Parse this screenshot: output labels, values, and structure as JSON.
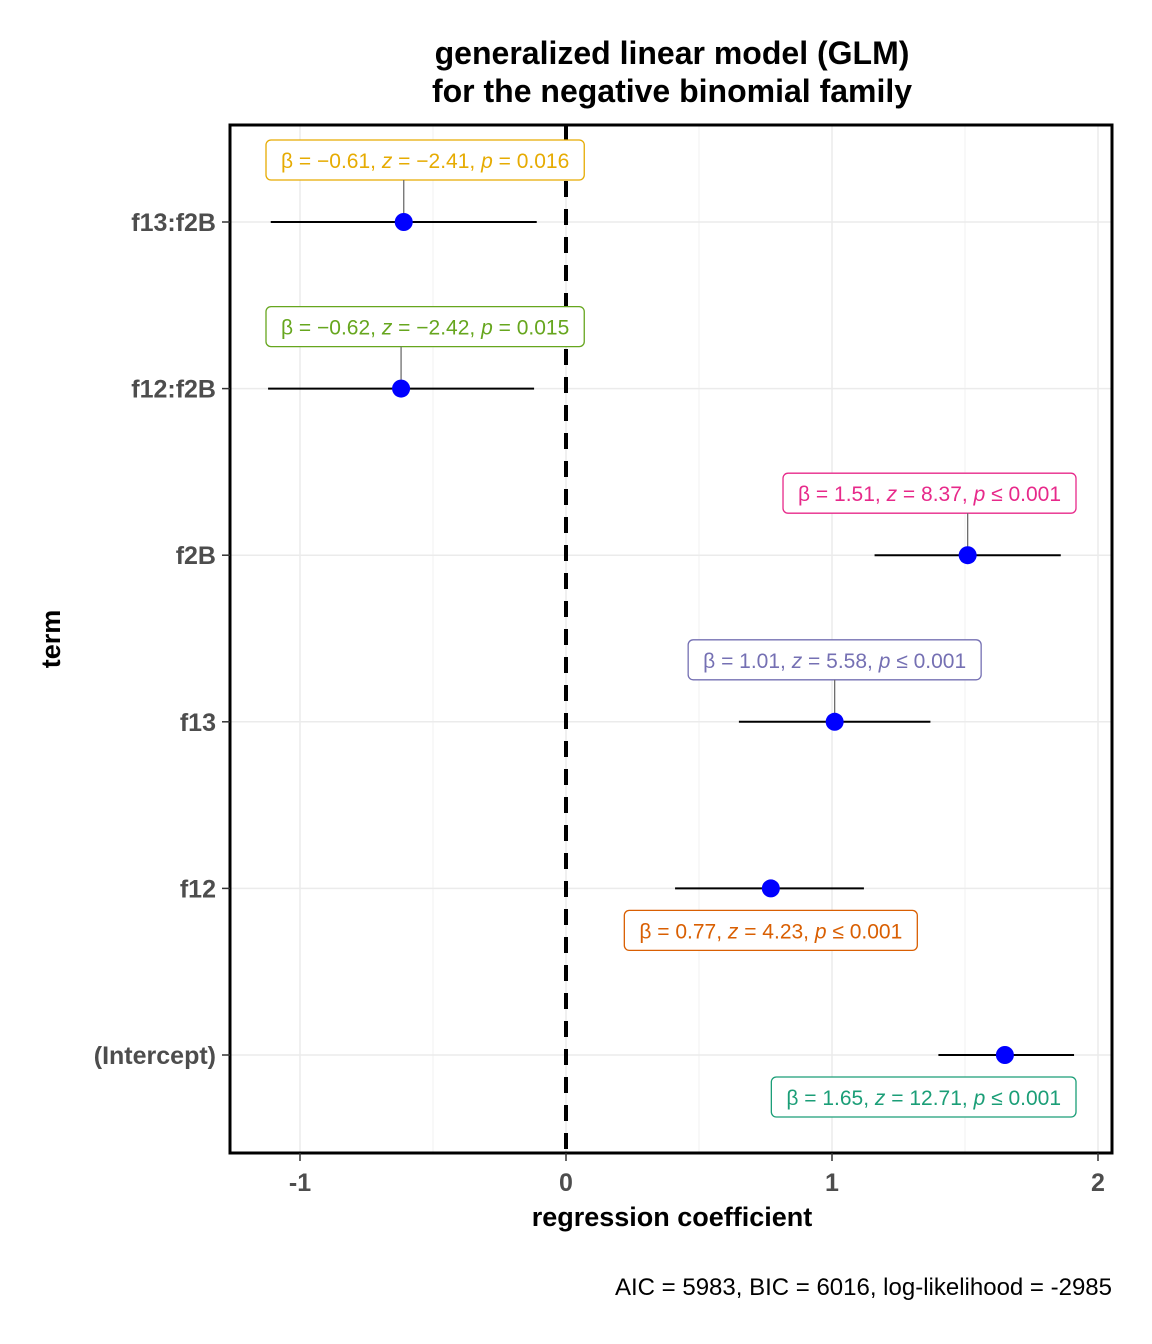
{
  "chart_data": {
    "type": "scatter",
    "title": [
      "generalized linear model (GLM)",
      "for the negative binomial family"
    ],
    "xlabel": "regression coefficient",
    "ylabel": "term",
    "caption": "AIC = 5983, BIC = 6016, log-likelihood = -2985",
    "xlim": [
      -1.25,
      2.06
    ],
    "xticks": [
      -1,
      0,
      1,
      2
    ],
    "xtick_labels": [
      "-1",
      "0",
      "1",
      "2"
    ],
    "grid": true,
    "reference_line_x": 0,
    "point_color": "#0000ff",
    "terms": [
      {
        "term": "(Intercept)",
        "estimate": 1.65,
        "low": 1.4,
        "high": 1.91,
        "label_color": "#1b9e77",
        "label_side": "below",
        "label": [
          "β = 1.65, ",
          "z",
          " = 12.71, ",
          "p",
          " ≤ 0.001"
        ]
      },
      {
        "term": "f12",
        "estimate": 0.77,
        "low": 0.41,
        "high": 1.12,
        "label_color": "#d95f02",
        "label_side": "below",
        "label": [
          "β = 0.77, ",
          "z",
          " = 4.23, ",
          "p",
          " ≤ 0.001"
        ]
      },
      {
        "term": "f13",
        "estimate": 1.01,
        "low": 0.65,
        "high": 1.37,
        "label_color": "#7570b3",
        "label_side": "above",
        "label": [
          "β = 1.01, ",
          "z",
          " = 5.58, ",
          "p",
          " ≤ 0.001"
        ]
      },
      {
        "term": "f2B",
        "estimate": 1.51,
        "low": 1.16,
        "high": 1.86,
        "label_color": "#e7298a",
        "label_side": "above",
        "label": [
          "β = 1.51, ",
          "z",
          " = 8.37, ",
          "p",
          " ≤ 0.001"
        ]
      },
      {
        "term": "f12:f2B",
        "estimate": -0.62,
        "low": -1.12,
        "high": -0.12,
        "label_color": "#66a61e",
        "label_side": "above",
        "label": [
          "β = −0.62, ",
          "z",
          " = −2.42, ",
          "p",
          " = 0.015"
        ]
      },
      {
        "term": "f13:f2B",
        "estimate": -0.61,
        "low": -1.11,
        "high": -0.11,
        "label_color": "#e6ab02",
        "label_side": "above",
        "label": [
          "β = −0.61, ",
          "z",
          " = −2.41, ",
          "p",
          " = 0.016"
        ]
      }
    ]
  }
}
